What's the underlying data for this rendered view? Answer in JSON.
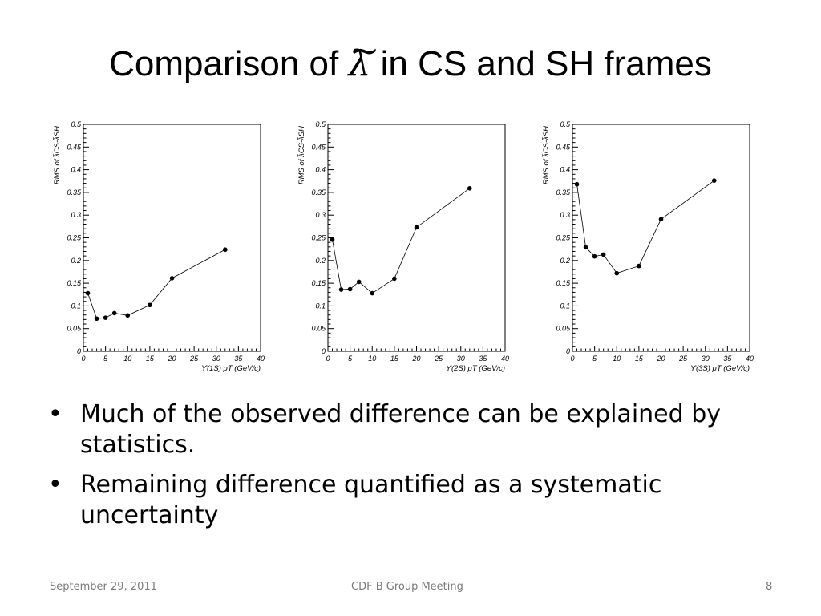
{
  "slide": {
    "title_prefix": "Comparison of ",
    "title_symbol": "λ",
    "title_tilde": "~",
    "title_suffix": " in CS and SH frames",
    "bullets": [
      "Much of the observed difference can be explained by statistics.",
      "Remaining difference quantified as a systematic uncertainty"
    ],
    "bullet_glyph": "•",
    "footer": {
      "date": "September 29, 2011",
      "meeting": "CDF B Group Meeting",
      "page": "8"
    }
  },
  "chart_data": [
    {
      "type": "line",
      "ylabel": "RMS of λ̃CS-λ̃SH",
      "xlabel_prefix": "ϒ(1S)",
      "xlabel_var": "pT",
      "xlabel_unit": "(GeV/c)",
      "xlim": [
        0,
        40
      ],
      "ylim": [
        0,
        0.5
      ],
      "x_ticks": [
        "0",
        "5",
        "10",
        "15",
        "20",
        "25",
        "30",
        "35",
        "40"
      ],
      "y_ticks": [
        "0",
        "0.05",
        "0.1",
        "0.15",
        "0.2",
        "0.25",
        "0.3",
        "0.35",
        "0.4",
        "0.45",
        "0.5"
      ],
      "x": [
        1,
        3,
        5,
        7,
        10,
        15,
        20,
        32
      ],
      "y": [
        0.128,
        0.072,
        0.074,
        0.084,
        0.079,
        0.102,
        0.161,
        0.224
      ],
      "grid": false,
      "color": "#000000"
    },
    {
      "type": "line",
      "ylabel": "RMS of λ̃CS-λ̃SH",
      "xlabel_prefix": "ϒ(2S)",
      "xlabel_var": "pT",
      "xlabel_unit": "(GeV/c)",
      "xlim": [
        0,
        40
      ],
      "ylim": [
        0,
        0.5
      ],
      "x_ticks": [
        "0",
        "5",
        "10",
        "15",
        "20",
        "25",
        "30",
        "35",
        "40"
      ],
      "y_ticks": [
        "0",
        "0.05",
        "0.1",
        "0.15",
        "0.2",
        "0.25",
        "0.3",
        "0.35",
        "0.4",
        "0.45",
        "0.5"
      ],
      "x": [
        1,
        3,
        5,
        7,
        10,
        15,
        20,
        32
      ],
      "y": [
        0.246,
        0.136,
        0.137,
        0.153,
        0.128,
        0.16,
        0.273,
        0.359
      ],
      "grid": false,
      "color": "#000000"
    },
    {
      "type": "line",
      "ylabel": "RMS of λ̃CS-λ̃SH",
      "xlabel_prefix": "ϒ(3S)",
      "xlabel_var": "pT",
      "xlabel_unit": "(GeV/c)",
      "xlim": [
        0,
        40
      ],
      "ylim": [
        0,
        0.5
      ],
      "x_ticks": [
        "0",
        "5",
        "10",
        "15",
        "20",
        "25",
        "30",
        "35",
        "40"
      ],
      "y_ticks": [
        "0",
        "0.05",
        "0.1",
        "0.15",
        "0.2",
        "0.25",
        "0.3",
        "0.35",
        "0.4",
        "0.45",
        "0.5"
      ],
      "x": [
        1,
        3,
        5,
        7,
        10,
        15,
        20,
        32
      ],
      "y": [
        0.368,
        0.229,
        0.209,
        0.213,
        0.172,
        0.188,
        0.291,
        0.376
      ],
      "grid": false,
      "color": "#000000"
    }
  ]
}
